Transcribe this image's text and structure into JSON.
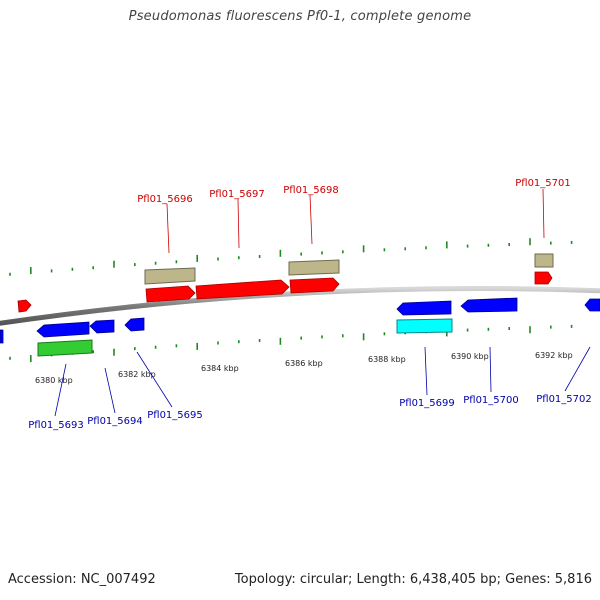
{
  "title": "Pseudomonas fluorescens Pf0-1, complete genome",
  "footer": {
    "accession": "Accession: NC_007492",
    "summary": "Topology: circular; Length: 6,438,405 bp; Genes: 5,816"
  },
  "colors": {
    "forward_gene": "#ff0000",
    "reverse_gene": "#0000ff",
    "forward_feature": "#bdb68a",
    "reverse_feature_a": "#33cc33",
    "reverse_feature_b": "#00ffff",
    "forward_label": "#cc0000",
    "reverse_label": "#0000aa",
    "tick": "#228822",
    "backbone": "#888888"
  },
  "scale_labels": [
    "6380 kbp",
    "6382 kbp",
    "6384 kbp",
    "6386 kbp",
    "6388 kbp",
    "6390 kbp",
    "6392 kbp"
  ],
  "gene_labels": {
    "forward": [
      "Pfl01_5696",
      "Pfl01_5697",
      "Pfl01_5698",
      "Pfl01_5701"
    ],
    "reverse": [
      "Pfl01_5693",
      "Pfl01_5694",
      "Pfl01_5695",
      "Pfl01_5699",
      "Pfl01_5700",
      "Pfl01_5702"
    ]
  }
}
